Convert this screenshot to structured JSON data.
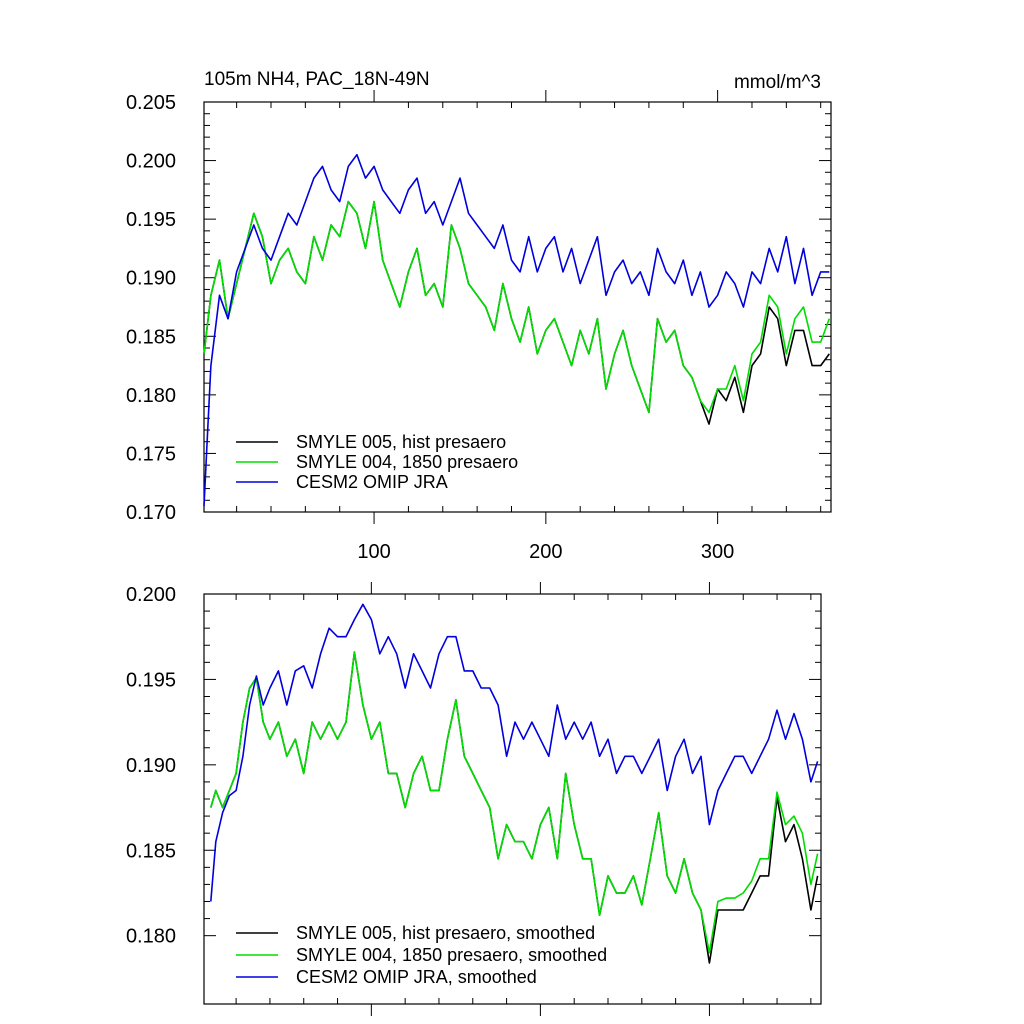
{
  "chart_data": [
    {
      "type": "line",
      "title_left": "105m NH4, PAC_18N-49N",
      "title_right": "mmol/m^3",
      "xlabel": "",
      "ylabel": "",
      "xlim": [
        1,
        366
      ],
      "ylim": [
        0.17,
        0.205
      ],
      "x_ticks": [
        100,
        200,
        300
      ],
      "x_tick_labels": [
        "100",
        "200",
        "300"
      ],
      "y_ticks": [
        0.17,
        0.175,
        0.18,
        0.185,
        0.19,
        0.195,
        0.2,
        0.205
      ],
      "y_tick_labels": [
        "0.170",
        "0.175",
        "0.180",
        "0.185",
        "0.190",
        "0.195",
        "0.200",
        "0.205"
      ],
      "legend_position": "bottom-left",
      "series": [
        {
          "name": "SMYLE 005, hist presaero",
          "color": "#000000",
          "x": [
            1,
            5,
            10,
            15,
            20,
            25,
            30,
            35,
            40,
            45,
            50,
            55,
            60,
            65,
            70,
            75,
            80,
            85,
            90,
            95,
            100,
            105,
            110,
            115,
            120,
            125,
            130,
            135,
            140,
            145,
            150,
            155,
            160,
            165,
            170,
            175,
            180,
            185,
            190,
            195,
            200,
            205,
            210,
            215,
            220,
            225,
            230,
            235,
            240,
            245,
            250,
            255,
            260,
            265,
            270,
            275,
            280,
            285,
            290,
            295,
            300,
            305,
            310,
            315,
            320,
            325,
            330,
            335,
            340,
            345,
            350,
            355,
            360,
            365
          ],
          "values": [
            0.1835,
            0.1885,
            0.1915,
            0.1865,
            0.1895,
            0.1925,
            0.1955,
            0.1935,
            0.1895,
            0.1915,
            0.1925,
            0.1905,
            0.1895,
            0.1935,
            0.1915,
            0.1945,
            0.1935,
            0.1965,
            0.1955,
            0.1925,
            0.1965,
            0.1915,
            0.1895,
            0.1875,
            0.1905,
            0.1925,
            0.1885,
            0.1895,
            0.1875,
            0.1945,
            0.1925,
            0.1895,
            0.1885,
            0.1875,
            0.1855,
            0.1895,
            0.1865,
            0.1845,
            0.1875,
            0.1835,
            0.1855,
            0.1865,
            0.1845,
            0.1825,
            0.1855,
            0.1835,
            0.1865,
            0.1805,
            0.1835,
            0.1855,
            0.1825,
            0.1805,
            0.1785,
            0.1865,
            0.1845,
            0.1855,
            0.1825,
            0.1815,
            0.1795,
            0.1775,
            0.1805,
            0.1795,
            0.1815,
            0.1785,
            0.1825,
            0.1835,
            0.1875,
            0.1865,
            0.1825,
            0.1855,
            0.1855,
            0.1825,
            0.1825,
            0.1835
          ]
        },
        {
          "name": "SMYLE 004, 1850 presaero",
          "color": "#00dd00",
          "x": [
            1,
            5,
            10,
            15,
            20,
            25,
            30,
            35,
            40,
            45,
            50,
            55,
            60,
            65,
            70,
            75,
            80,
            85,
            90,
            95,
            100,
            105,
            110,
            115,
            120,
            125,
            130,
            135,
            140,
            145,
            150,
            155,
            160,
            165,
            170,
            175,
            180,
            185,
            190,
            195,
            200,
            205,
            210,
            215,
            220,
            225,
            230,
            235,
            240,
            245,
            250,
            255,
            260,
            265,
            270,
            275,
            280,
            285,
            290,
            295,
            300,
            305,
            310,
            315,
            320,
            325,
            330,
            335,
            340,
            345,
            350,
            355,
            360,
            365
          ],
          "values": [
            0.1835,
            0.1885,
            0.1915,
            0.1865,
            0.1895,
            0.1925,
            0.1955,
            0.1935,
            0.1895,
            0.1915,
            0.1925,
            0.1905,
            0.1895,
            0.1935,
            0.1915,
            0.1945,
            0.1935,
            0.1965,
            0.1955,
            0.1925,
            0.1965,
            0.1915,
            0.1895,
            0.1875,
            0.1905,
            0.1925,
            0.1885,
            0.1895,
            0.1875,
            0.1945,
            0.1925,
            0.1895,
            0.1885,
            0.1875,
            0.1855,
            0.1895,
            0.1865,
            0.1845,
            0.1875,
            0.1835,
            0.1855,
            0.1865,
            0.1845,
            0.1825,
            0.1855,
            0.1835,
            0.1865,
            0.1805,
            0.1835,
            0.1855,
            0.1825,
            0.1805,
            0.1785,
            0.1865,
            0.1845,
            0.1855,
            0.1825,
            0.1815,
            0.1795,
            0.1785,
            0.1805,
            0.1805,
            0.1825,
            0.1795,
            0.1835,
            0.1845,
            0.1885,
            0.1875,
            0.1835,
            0.1865,
            0.1875,
            0.1845,
            0.1845,
            0.1865
          ]
        },
        {
          "name": "CESM2 OMIP JRA",
          "color": "#0000dd",
          "x": [
            1,
            3,
            5,
            10,
            15,
            20,
            25,
            30,
            35,
            40,
            45,
            50,
            55,
            60,
            65,
            70,
            75,
            80,
            85,
            90,
            95,
            100,
            105,
            110,
            115,
            120,
            125,
            130,
            135,
            140,
            145,
            150,
            155,
            160,
            165,
            170,
            175,
            180,
            185,
            190,
            195,
            200,
            205,
            210,
            215,
            220,
            225,
            230,
            235,
            240,
            245,
            250,
            255,
            260,
            265,
            270,
            275,
            280,
            285,
            290,
            295,
            300,
            305,
            310,
            315,
            320,
            325,
            330,
            335,
            340,
            345,
            350,
            355,
            360,
            365
          ],
          "values": [
            0.1705,
            0.1765,
            0.1825,
            0.1885,
            0.1865,
            0.1905,
            0.1925,
            0.1945,
            0.1925,
            0.1915,
            0.1935,
            0.1955,
            0.1945,
            0.1965,
            0.1985,
            0.1995,
            0.1975,
            0.1965,
            0.1995,
            0.2005,
            0.1985,
            0.1995,
            0.1975,
            0.1965,
            0.1955,
            0.1975,
            0.1985,
            0.1955,
            0.1965,
            0.1945,
            0.1965,
            0.1985,
            0.1955,
            0.1945,
            0.1935,
            0.1925,
            0.1945,
            0.1915,
            0.1905,
            0.1935,
            0.1905,
            0.1925,
            0.1935,
            0.1905,
            0.1925,
            0.1895,
            0.1915,
            0.1935,
            0.1885,
            0.1905,
            0.1915,
            0.1895,
            0.1905,
            0.1885,
            0.1925,
            0.1905,
            0.1895,
            0.1915,
            0.1885,
            0.1905,
            0.1875,
            0.1885,
            0.1905,
            0.1895,
            0.1875,
            0.1905,
            0.1895,
            0.1925,
            0.1905,
            0.1935,
            0.1895,
            0.1925,
            0.1885,
            0.1905,
            0.1905
          ]
        }
      ]
    },
    {
      "type": "line",
      "title_left": "",
      "title_right": "",
      "xlabel": "",
      "ylabel": "",
      "xlim": [
        1,
        366
      ],
      "ylim": [
        0.176,
        0.2
      ],
      "x_ticks": [
        100,
        200,
        300
      ],
      "x_tick_labels": [],
      "y_ticks": [
        0.18,
        0.185,
        0.19,
        0.195,
        0.2
      ],
      "y_tick_labels": [
        "0.180",
        "0.185",
        "0.190",
        "0.195",
        "0.200"
      ],
      "legend_position": "bottom-left",
      "series": [
        {
          "name": "SMYLE 005, hist presaero, smoothed",
          "color": "#000000",
          "x": [
            5,
            8,
            12,
            16,
            20,
            24,
            28,
            32,
            36,
            40,
            45,
            50,
            55,
            60,
            65,
            70,
            75,
            80,
            85,
            90,
            95,
            100,
            105,
            110,
            115,
            120,
            125,
            130,
            135,
            140,
            145,
            150,
            155,
            160,
            165,
            170,
            175,
            180,
            185,
            190,
            195,
            200,
            205,
            210,
            215,
            220,
            225,
            230,
            235,
            240,
            245,
            250,
            255,
            260,
            265,
            270,
            275,
            280,
            285,
            290,
            295,
            300,
            305,
            310,
            315,
            320,
            325,
            330,
            335,
            340,
            345,
            350,
            355,
            360,
            364
          ],
          "values": [
            0.1875,
            0.1885,
            0.1875,
            0.1885,
            0.1895,
            0.1925,
            0.1945,
            0.1951,
            0.1925,
            0.1915,
            0.1925,
            0.1905,
            0.1915,
            0.1895,
            0.1925,
            0.1915,
            0.1925,
            0.1915,
            0.1925,
            0.1966,
            0.1935,
            0.1915,
            0.1925,
            0.1895,
            0.1895,
            0.1875,
            0.1895,
            0.1905,
            0.1885,
            0.1885,
            0.1915,
            0.1938,
            0.1905,
            0.1895,
            0.1885,
            0.1875,
            0.1845,
            0.1865,
            0.1855,
            0.1855,
            0.1845,
            0.1865,
            0.1875,
            0.1845,
            0.1895,
            0.1865,
            0.1845,
            0.1845,
            0.1812,
            0.1835,
            0.1825,
            0.1825,
            0.1835,
            0.1818,
            0.1845,
            0.1872,
            0.1835,
            0.1825,
            0.1845,
            0.1825,
            0.1815,
            0.1784,
            0.1815,
            0.1815,
            0.1815,
            0.1815,
            0.1825,
            0.1835,
            0.1835,
            0.1881,
            0.1855,
            0.1865,
            0.1845,
            0.1815,
            0.1835
          ]
        },
        {
          "name": "SMYLE 004, 1850 presaero, smoothed",
          "color": "#00dd00",
          "x": [
            5,
            8,
            12,
            16,
            20,
            24,
            28,
            32,
            36,
            40,
            45,
            50,
            55,
            60,
            65,
            70,
            75,
            80,
            85,
            90,
            95,
            100,
            105,
            110,
            115,
            120,
            125,
            130,
            135,
            140,
            145,
            150,
            155,
            160,
            165,
            170,
            175,
            180,
            185,
            190,
            195,
            200,
            205,
            210,
            215,
            220,
            225,
            230,
            235,
            240,
            245,
            250,
            255,
            260,
            265,
            270,
            275,
            280,
            285,
            290,
            295,
            300,
            305,
            310,
            315,
            320,
            325,
            330,
            335,
            340,
            345,
            350,
            355,
            360,
            364
          ],
          "values": [
            0.1875,
            0.1885,
            0.1875,
            0.1885,
            0.1895,
            0.1925,
            0.1945,
            0.1951,
            0.1925,
            0.1915,
            0.1925,
            0.1905,
            0.1915,
            0.1895,
            0.1925,
            0.1915,
            0.1925,
            0.1915,
            0.1925,
            0.1966,
            0.1935,
            0.1915,
            0.1925,
            0.1895,
            0.1895,
            0.1875,
            0.1895,
            0.1905,
            0.1885,
            0.1885,
            0.1915,
            0.1938,
            0.1905,
            0.1895,
            0.1885,
            0.1875,
            0.1845,
            0.1865,
            0.1855,
            0.1855,
            0.1845,
            0.1865,
            0.1875,
            0.1845,
            0.1895,
            0.1865,
            0.1845,
            0.1845,
            0.1812,
            0.1835,
            0.1825,
            0.1825,
            0.1835,
            0.1818,
            0.1845,
            0.1872,
            0.1835,
            0.1825,
            0.1845,
            0.1825,
            0.1815,
            0.179,
            0.182,
            0.1822,
            0.1822,
            0.1825,
            0.1832,
            0.1845,
            0.1845,
            0.1884,
            0.1865,
            0.187,
            0.186,
            0.183,
            0.1848
          ]
        },
        {
          "name": "CESM2 OMIP JRA, smoothed",
          "color": "#0000dd",
          "x": [
            5,
            8,
            12,
            16,
            20,
            24,
            28,
            32,
            36,
            40,
            45,
            50,
            55,
            60,
            65,
            70,
            75,
            80,
            85,
            90,
            95,
            100,
            105,
            110,
            115,
            120,
            125,
            130,
            135,
            140,
            145,
            150,
            155,
            160,
            165,
            170,
            175,
            180,
            185,
            190,
            195,
            200,
            205,
            210,
            215,
            220,
            225,
            230,
            235,
            240,
            245,
            250,
            255,
            260,
            265,
            270,
            275,
            280,
            285,
            290,
            295,
            300,
            305,
            310,
            315,
            320,
            325,
            330,
            335,
            340,
            345,
            350,
            355,
            360,
            364
          ],
          "values": [
            0.182,
            0.1855,
            0.1872,
            0.1882,
            0.1885,
            0.1905,
            0.1935,
            0.1952,
            0.1935,
            0.1945,
            0.1955,
            0.1935,
            0.1955,
            0.1958,
            0.1945,
            0.1965,
            0.198,
            0.1975,
            0.1975,
            0.1985,
            0.1994,
            0.1985,
            0.1965,
            0.1975,
            0.1965,
            0.1945,
            0.1965,
            0.1955,
            0.1945,
            0.1965,
            0.1975,
            0.1975,
            0.1955,
            0.1955,
            0.1945,
            0.1945,
            0.1935,
            0.1905,
            0.1925,
            0.1915,
            0.1925,
            0.1915,
            0.1905,
            0.1935,
            0.1915,
            0.1925,
            0.1915,
            0.1925,
            0.1905,
            0.1915,
            0.1895,
            0.1905,
            0.1905,
            0.1895,
            0.1905,
            0.1915,
            0.1885,
            0.1905,
            0.1915,
            0.1895,
            0.1905,
            0.1865,
            0.1885,
            0.1895,
            0.1905,
            0.1905,
            0.1895,
            0.1905,
            0.1915,
            0.1932,
            0.1915,
            0.193,
            0.1915,
            0.189,
            0.1902
          ]
        }
      ]
    }
  ]
}
